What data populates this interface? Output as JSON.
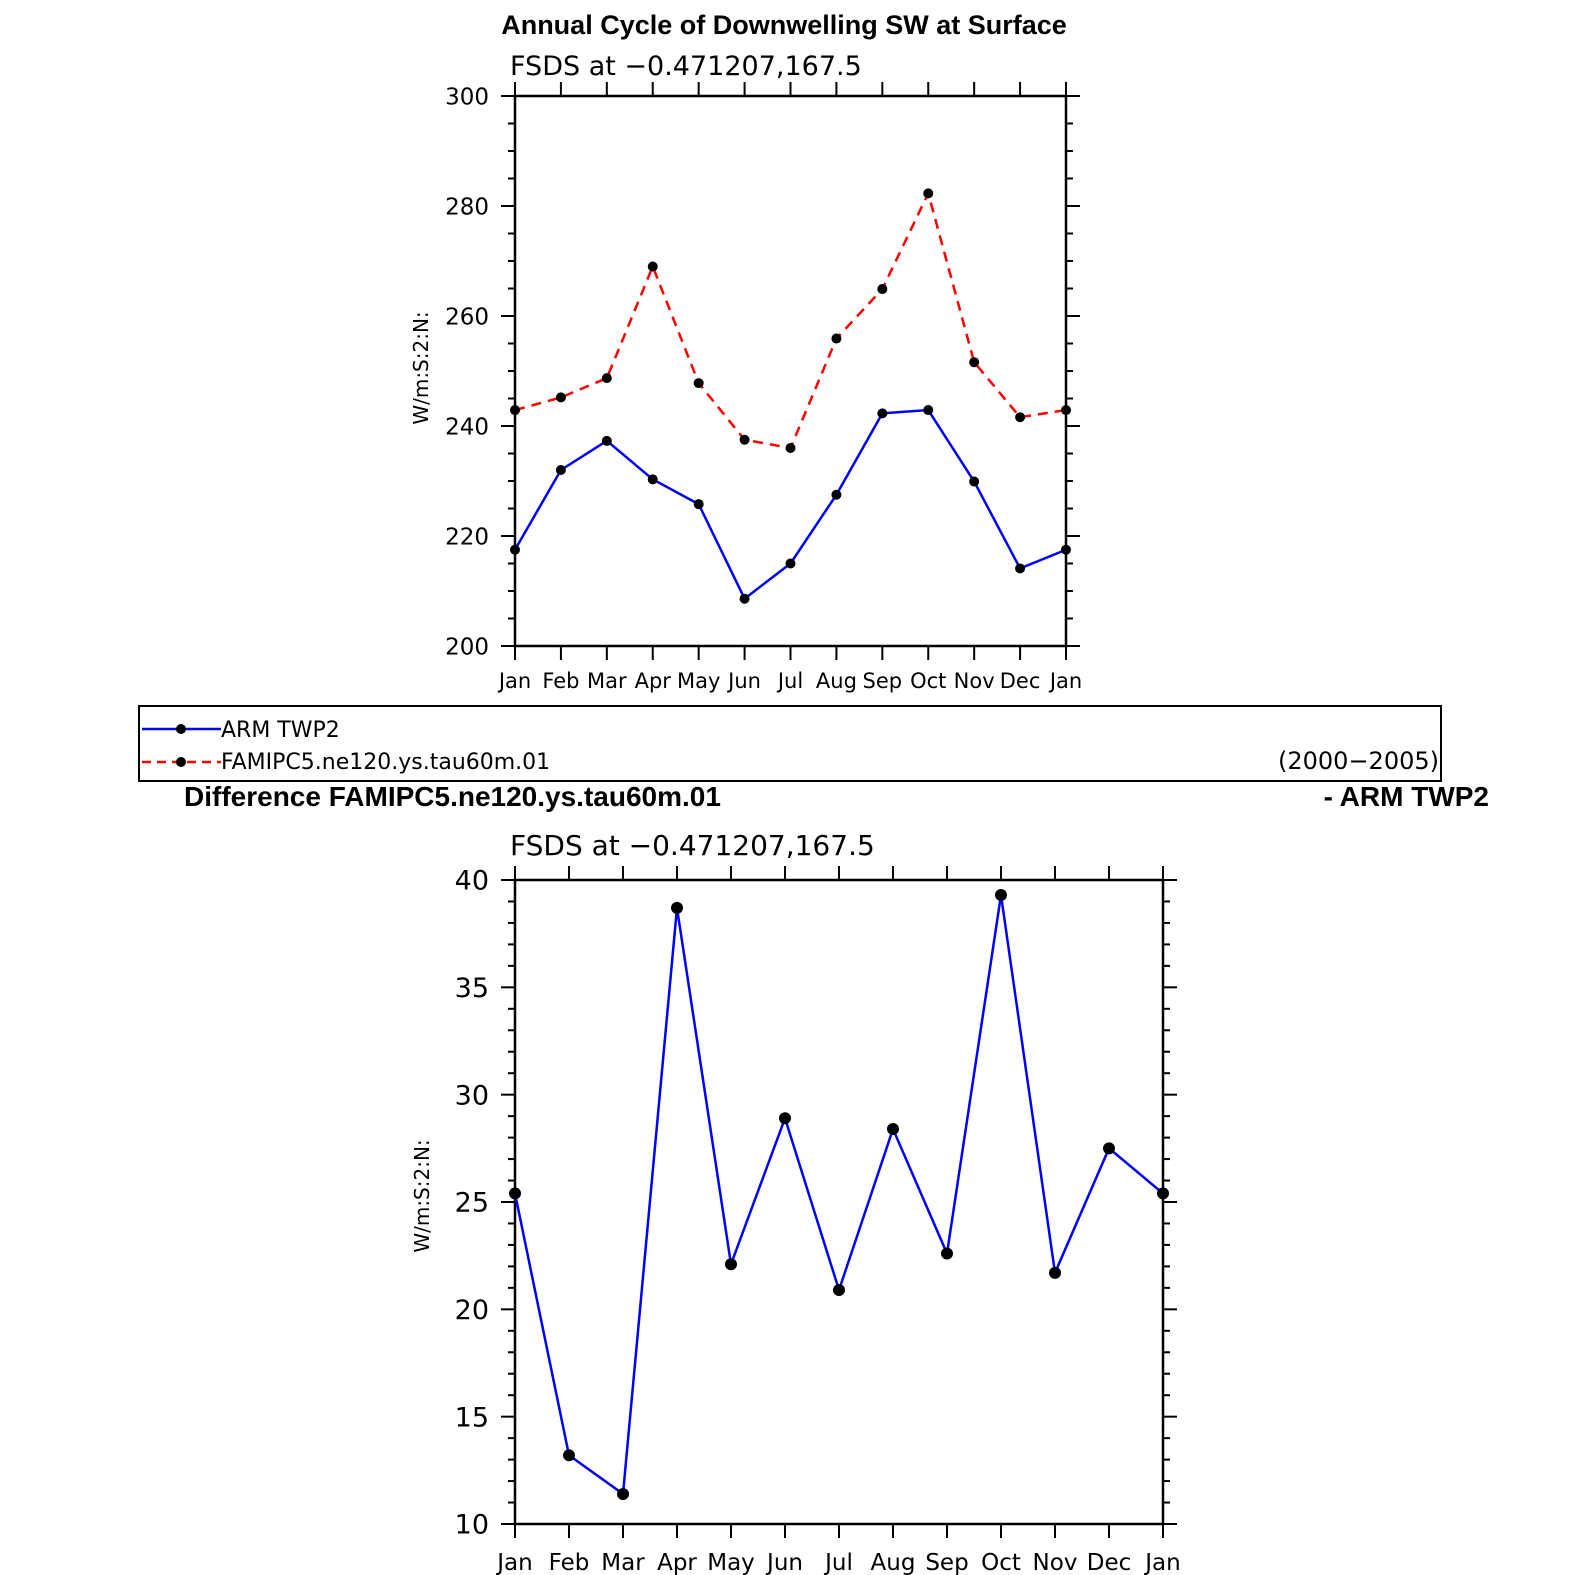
{
  "chart_data": [
    {
      "type": "line",
      "title": "Annual Cycle of Downwelling SW at Surface",
      "subtitle": "FSDS at −0.471207,167.5",
      "ylabel": "W/m:S:2:N:",
      "categories": [
        "Jan",
        "Feb",
        "Mar",
        "Apr",
        "May",
        "Jun",
        "Jul",
        "Aug",
        "Sep",
        "Oct",
        "Nov",
        "Dec",
        "Jan"
      ],
      "ylim": [
        200,
        300
      ],
      "yticks": [
        "200",
        "220",
        "240",
        "260",
        "280",
        "300"
      ],
      "series": [
        {
          "name": "ARM TWP2",
          "color": "#0000ff",
          "dash": "solid",
          "values": [
            217.5,
            232,
            237.3,
            230.3,
            225.8,
            208.6,
            215,
            227.5,
            242.3,
            242.9,
            229.9,
            214.1,
            217.5
          ]
        },
        {
          "name": "FAMIPC5.ne120.ys.tau60m.01",
          "color": "#ff0000",
          "dash": "dashed",
          "values": [
            242.9,
            245.2,
            248.7,
            269,
            247.8,
            237.5,
            236,
            255.9,
            264.9,
            282.3,
            251.6,
            241.6,
            242.9
          ]
        }
      ],
      "legend": {
        "placement": "bottom",
        "period": "(2000−2005)"
      }
    },
    {
      "type": "line",
      "title_left": "Difference FAMIPC5.ne120.ys.tau60m.01",
      "title_right": "- ARM TWP2",
      "subtitle": "FSDS at −0.471207,167.5",
      "ylabel": "W/m:S:2:N:",
      "categories": [
        "Jan",
        "Feb",
        "Mar",
        "Apr",
        "May",
        "Jun",
        "Jul",
        "Aug",
        "Sep",
        "Oct",
        "Nov",
        "Dec",
        "Jan"
      ],
      "ylim": [
        10,
        40
      ],
      "yticks": [
        "10",
        "15",
        "20",
        "25",
        "30",
        "35",
        "40"
      ],
      "series": [
        {
          "color": "#0000ff",
          "dash": "solid",
          "values": [
            25.4,
            13.2,
            11.4,
            38.7,
            22.1,
            28.9,
            20.9,
            28.4,
            22.6,
            39.3,
            21.7,
            27.5,
            25.4
          ]
        }
      ]
    }
  ]
}
